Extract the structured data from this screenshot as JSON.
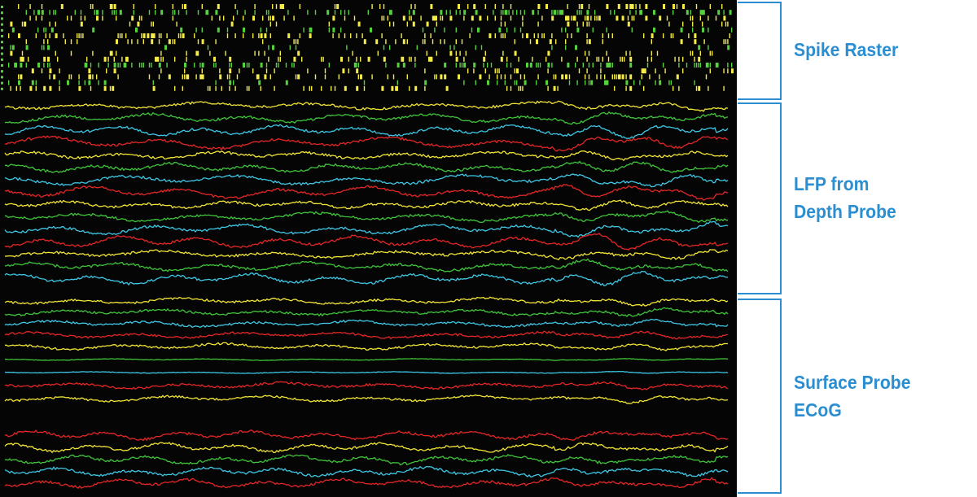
{
  "sections": {
    "spike_raster": {
      "label_lines": [
        "Spike Raster"
      ]
    },
    "lfp": {
      "label_lines": [
        "LFP from",
        "Depth Probe"
      ]
    },
    "ecog": {
      "label_lines": [
        "Surface Probe",
        "ECoG"
      ]
    }
  },
  "colors": {
    "background": "#050505",
    "accent": "#2b8ed0",
    "trace_cycle": [
      "#f2e535",
      "#3fc53a",
      "#3ec8e6",
      "#e52626"
    ],
    "raster_yellow": "#f5ec4a",
    "raster_green": "#56d23e"
  },
  "icons": {
    "channel_markers": "green-channel-marker-icon"
  }
}
